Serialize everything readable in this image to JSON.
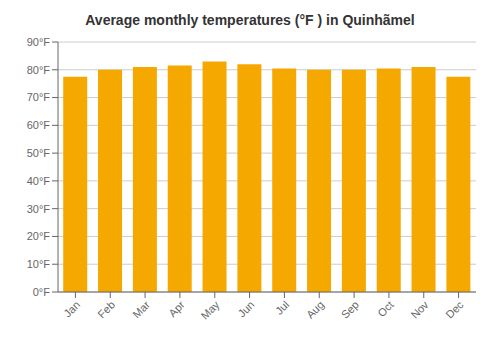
{
  "chart_data": {
    "type": "bar",
    "title": "Average monthly temperatures (°F ) in Quinhãmel",
    "categories": [
      "Jan",
      "Feb",
      "Mar",
      "Apr",
      "May",
      "Jun",
      "Jul",
      "Aug",
      "Sep",
      "Oct",
      "Nov",
      "Dec"
    ],
    "values": [
      77.5,
      80.0,
      81.0,
      81.5,
      83.0,
      82.0,
      80.5,
      80.0,
      80.0,
      80.5,
      81.0,
      77.5
    ],
    "color": "#F5A800",
    "ylim": [
      0,
      90
    ],
    "yticks": [
      {
        "value": 0,
        "label": "0°F"
      },
      {
        "value": 10,
        "label": "10°F"
      },
      {
        "value": 20,
        "label": "20°F"
      },
      {
        "value": 30,
        "label": "30°F"
      },
      {
        "value": 40,
        "label": "40°F"
      },
      {
        "value": 50,
        "label": "50°F"
      },
      {
        "value": 60,
        "label": "60°F"
      },
      {
        "value": 70,
        "label": "70°F"
      },
      {
        "value": 80,
        "label": "80°F"
      },
      {
        "value": 90,
        "label": "90°F"
      }
    ],
    "grid": true
  }
}
